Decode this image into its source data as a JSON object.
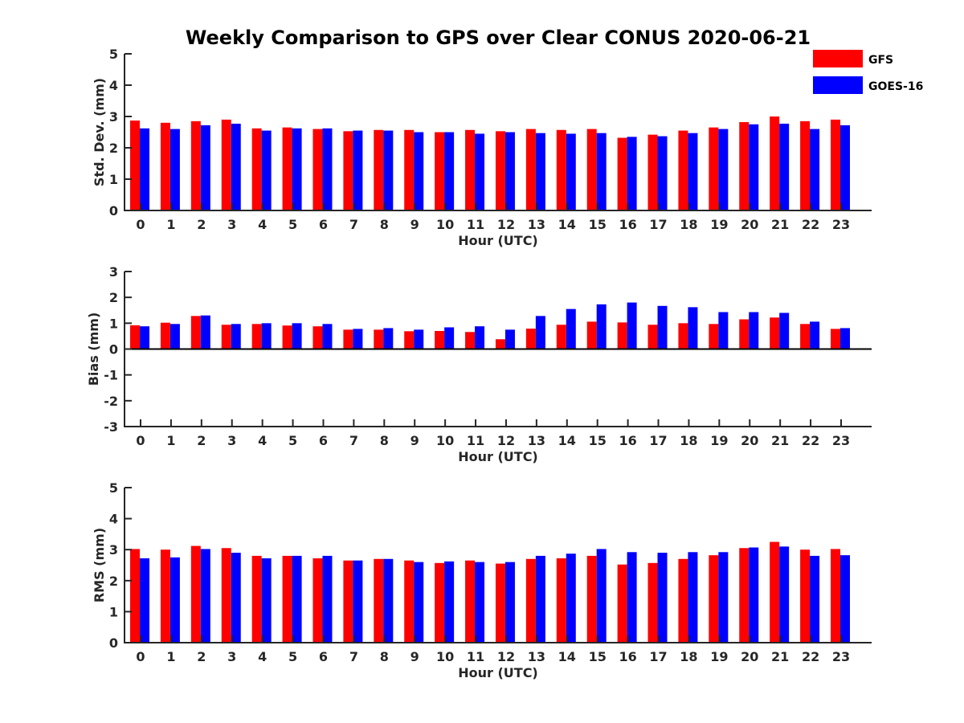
{
  "chart_data": {
    "title": "Weekly Comparison to GPS over Clear CONUS 2020-06-21",
    "type": "bar",
    "legend": {
      "position": "top-right",
      "entries": [
        {
          "name": "GFS",
          "color": "#ff0000"
        },
        {
          "name": "GOES-16",
          "color": "#0000ff"
        }
      ]
    },
    "panels": [
      {
        "type": "bar",
        "xlabel": "Hour (UTC)",
        "ylabel": "Std. Dev. (mm)",
        "ylim": [
          0,
          5
        ],
        "yticks": [
          "0",
          "1",
          "2",
          "3",
          "4",
          "5"
        ],
        "categories": [
          "0",
          "1",
          "2",
          "3",
          "4",
          "5",
          "6",
          "7",
          "8",
          "9",
          "10",
          "11",
          "12",
          "13",
          "14",
          "15",
          "16",
          "17",
          "18",
          "19",
          "20",
          "21",
          "22",
          "23"
        ],
        "series": [
          {
            "name": "GFS",
            "values": [
              2.87,
              2.8,
              2.85,
              2.9,
              2.62,
              2.65,
              2.6,
              2.53,
              2.57,
              2.57,
              2.5,
              2.57,
              2.53,
              2.6,
              2.57,
              2.6,
              2.32,
              2.42,
              2.55,
              2.65,
              2.82,
              3.0,
              2.85,
              2.9
            ]
          },
          {
            "name": "GOES-16",
            "values": [
              2.62,
              2.6,
              2.72,
              2.77,
              2.55,
              2.62,
              2.62,
              2.55,
              2.55,
              2.5,
              2.5,
              2.45,
              2.5,
              2.47,
              2.45,
              2.47,
              2.35,
              2.37,
              2.47,
              2.6,
              2.75,
              2.77,
              2.6,
              2.72
            ]
          }
        ]
      },
      {
        "type": "bar",
        "xlabel": "Hour (UTC)",
        "ylabel": "Bias (mm)",
        "ylim": [
          -3,
          3
        ],
        "yticks": [
          "-3",
          "-2",
          "-1",
          "0",
          "1",
          "2",
          "3"
        ],
        "categories": [
          "0",
          "1",
          "2",
          "3",
          "4",
          "5",
          "6",
          "7",
          "8",
          "9",
          "10",
          "11",
          "12",
          "13",
          "14",
          "15",
          "16",
          "17",
          "18",
          "19",
          "20",
          "21",
          "22",
          "23"
        ],
        "series": [
          {
            "name": "GFS",
            "values": [
              0.92,
              1.02,
              1.28,
              0.94,
              0.97,
              0.91,
              0.88,
              0.75,
              0.75,
              0.69,
              0.7,
              0.66,
              0.38,
              0.79,
              0.94,
              1.06,
              1.03,
              0.94,
              1.0,
              0.97,
              1.15,
              1.22,
              0.97,
              0.78
            ]
          },
          {
            "name": "GOES-16",
            "values": [
              0.88,
              0.97,
              1.3,
              0.97,
              1.0,
              1.0,
              0.97,
              0.78,
              0.81,
              0.75,
              0.84,
              0.88,
              0.75,
              1.28,
              1.55,
              1.73,
              1.8,
              1.67,
              1.62,
              1.43,
              1.43,
              1.4,
              1.06,
              0.81
            ]
          }
        ]
      },
      {
        "type": "bar",
        "xlabel": "Hour (UTC)",
        "ylabel": "RMS (mm)",
        "ylim": [
          0,
          5
        ],
        "yticks": [
          "0",
          "1",
          "2",
          "3",
          "4",
          "5"
        ],
        "categories": [
          "0",
          "1",
          "2",
          "3",
          "4",
          "5",
          "6",
          "7",
          "8",
          "9",
          "10",
          "11",
          "12",
          "13",
          "14",
          "15",
          "16",
          "17",
          "18",
          "19",
          "20",
          "21",
          "22",
          "23"
        ],
        "series": [
          {
            "name": "GFS",
            "values": [
              3.02,
              3.0,
              3.12,
              3.05,
              2.8,
              2.8,
              2.72,
              2.65,
              2.7,
              2.65,
              2.57,
              2.65,
              2.55,
              2.7,
              2.72,
              2.8,
              2.52,
              2.57,
              2.7,
              2.82,
              3.05,
              3.25,
              3.0,
              3.02
            ]
          },
          {
            "name": "GOES-16",
            "values": [
              2.72,
              2.75,
              3.02,
              2.9,
              2.72,
              2.8,
              2.8,
              2.65,
              2.7,
              2.6,
              2.62,
              2.6,
              2.6,
              2.8,
              2.87,
              3.02,
              2.92,
              2.9,
              2.92,
              2.92,
              3.07,
              3.1,
              2.8,
              2.82
            ]
          }
        ]
      }
    ]
  }
}
